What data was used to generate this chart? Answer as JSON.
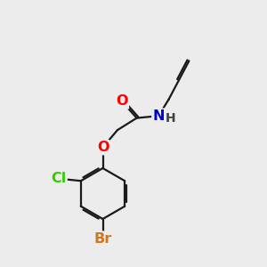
{
  "bg_color": "#ececec",
  "bond_color": "#1a1a1a",
  "atom_colors": {
    "O": "#ff0000",
    "N": "#0000cc",
    "Cl": "#33cc00",
    "Br": "#cc7722",
    "H": "#404040"
  },
  "bond_width": 1.6,
  "dbo": 0.07,
  "font_size": 11.5
}
